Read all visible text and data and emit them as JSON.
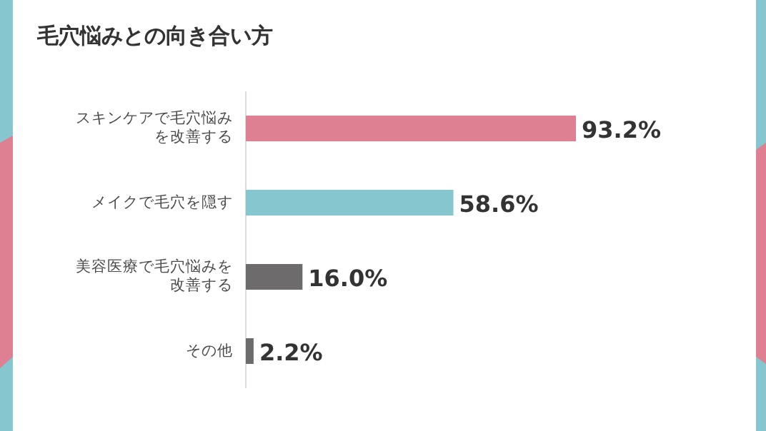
{
  "chart_data": {
    "type": "bar",
    "orientation": "horizontal",
    "title": "毛穴悩みとの向き合い方",
    "categories": [
      "スキンケアで毛穴悩みを改善する",
      "メイクで毛穴を隠す",
      "美容医療で毛穴悩みを改善する",
      "その他"
    ],
    "values": [
      93.2,
      58.6,
      16.0,
      2.2
    ],
    "colors": [
      "#de7f92",
      "#85c6cf",
      "#6e6b6c",
      "#6e6b6c"
    ],
    "value_labels": [
      "93.2%",
      "58.6%",
      "16.0%",
      "2.2%"
    ]
  }
}
